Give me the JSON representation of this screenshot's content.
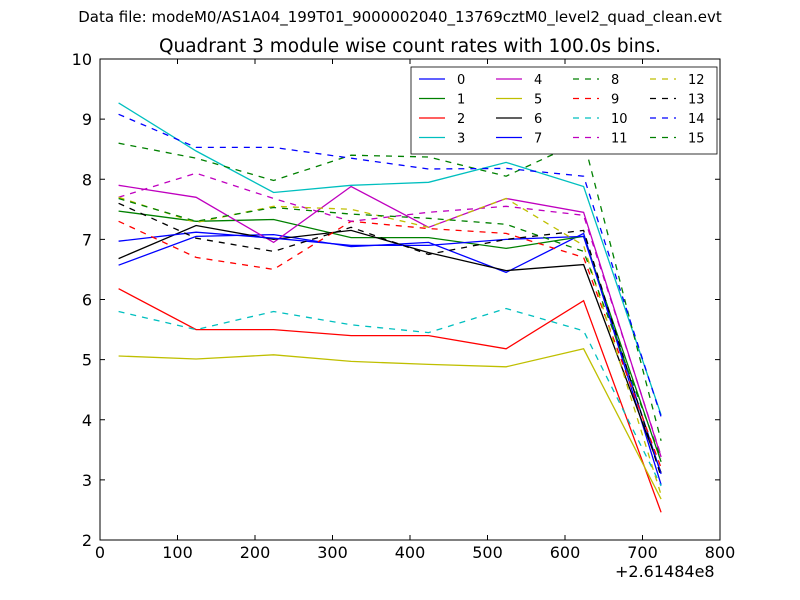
{
  "figure": {
    "suptitle": "Data file: modeM0/AS1A04_199T01_9000002040_13769cztM0_level2_quad_clean.evt",
    "title": "Quadrant 3 module wise count rates with 100.0s bins.",
    "x_offset_label": "+2.61484e8"
  },
  "chart_data": {
    "type": "line",
    "title": "Quadrant 3 module wise count rates with 100.0s bins.",
    "xlabel": "",
    "ylabel": "",
    "x_offset": 261484000,
    "xlim": [
      0,
      800
    ],
    "ylim": [
      2,
      10
    ],
    "xticks": [
      0,
      100,
      200,
      300,
      400,
      500,
      600,
      700,
      800
    ],
    "yticks": [
      2,
      3,
      4,
      5,
      6,
      7,
      8,
      9,
      10
    ],
    "grid": false,
    "legend_position": "top-right",
    "legend_columns": 4,
    "x": [
      24,
      124,
      224,
      324,
      424,
      524,
      624,
      724
    ],
    "series": [
      {
        "name": "0",
        "color": "#0000ff",
        "dash": "solid",
        "values": [
          6.57,
          7.05,
          7.08,
          6.88,
          6.95,
          6.45,
          7.1,
          2.92
        ]
      },
      {
        "name": "1",
        "color": "#008000",
        "dash": "solid",
        "values": [
          7.47,
          7.3,
          7.33,
          7.03,
          7.03,
          6.85,
          7.05,
          3.3
        ]
      },
      {
        "name": "2",
        "color": "#ff0000",
        "dash": "solid",
        "values": [
          6.18,
          5.5,
          5.5,
          5.4,
          5.4,
          5.18,
          5.98,
          2.46
        ]
      },
      {
        "name": "3",
        "color": "#00bfbf",
        "dash": "solid",
        "values": [
          9.27,
          8.47,
          7.78,
          7.9,
          7.95,
          8.28,
          7.88,
          4.08
        ]
      },
      {
        "name": "4",
        "color": "#bf00bf",
        "dash": "solid",
        "values": [
          7.9,
          7.7,
          6.95,
          7.88,
          7.2,
          7.68,
          7.45,
          3.38
        ]
      },
      {
        "name": "5",
        "color": "#bfbf00",
        "dash": "solid",
        "values": [
          5.06,
          5.01,
          5.08,
          4.97,
          4.92,
          4.88,
          5.18,
          2.68
        ]
      },
      {
        "name": "6",
        "color": "#000000",
        "dash": "solid",
        "values": [
          6.68,
          7.23,
          7.0,
          7.15,
          6.78,
          6.48,
          6.58,
          3.12
        ]
      },
      {
        "name": "7",
        "color": "#0000ff",
        "dash": "solid",
        "values": [
          6.97,
          7.12,
          7.02,
          6.9,
          6.9,
          7.0,
          7.05,
          3.1
        ]
      },
      {
        "name": "8",
        "color": "#008000",
        "dash": "dashed",
        "values": [
          8.6,
          8.35,
          7.98,
          8.4,
          8.37,
          8.05,
          8.65,
          3.65
        ]
      },
      {
        "name": "9",
        "color": "#ff0000",
        "dash": "dashed",
        "values": [
          7.3,
          6.7,
          6.5,
          7.3,
          7.18,
          7.1,
          6.7,
          3.2
        ]
      },
      {
        "name": "10",
        "color": "#00bfbf",
        "dash": "dashed",
        "values": [
          5.8,
          5.5,
          5.8,
          5.58,
          5.45,
          5.85,
          5.48,
          2.9
        ]
      },
      {
        "name": "11",
        "color": "#bf00bf",
        "dash": "dashed",
        "values": [
          7.7,
          8.1,
          7.68,
          7.3,
          7.45,
          7.55,
          7.4,
          3.4
        ]
      },
      {
        "name": "12",
        "color": "#bfbf00",
        "dash": "dashed",
        "values": [
          7.7,
          7.28,
          7.55,
          7.5,
          7.2,
          7.68,
          6.9,
          2.75
        ]
      },
      {
        "name": "13",
        "color": "#000000",
        "dash": "dashed",
        "values": [
          7.6,
          7.02,
          6.8,
          7.2,
          6.75,
          7.0,
          7.15,
          3.05
        ]
      },
      {
        "name": "14",
        "color": "#0000ff",
        "dash": "dashed",
        "values": [
          9.08,
          8.53,
          8.53,
          8.35,
          8.17,
          8.18,
          8.05,
          4.05
        ]
      },
      {
        "name": "15",
        "color": "#008000",
        "dash": "dashed",
        "values": [
          7.68,
          7.3,
          7.53,
          7.42,
          7.35,
          7.25,
          6.8,
          3.35
        ]
      }
    ]
  }
}
